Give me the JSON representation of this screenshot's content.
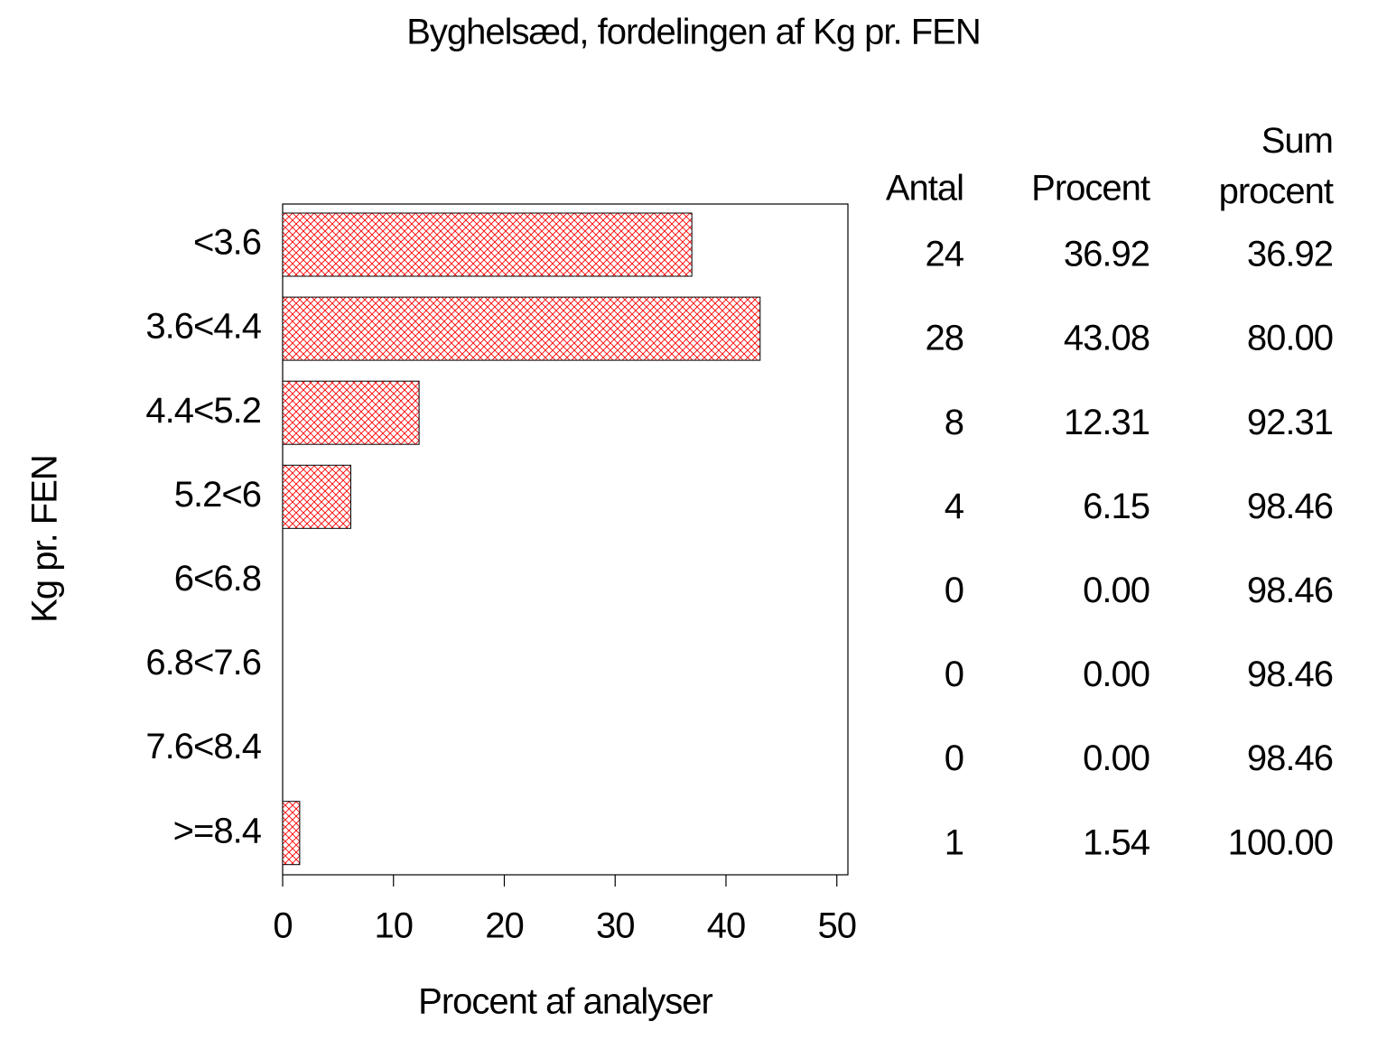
{
  "chart_data": {
    "type": "bar",
    "orientation": "horizontal",
    "title": "Byghelsæd, fordelingen af Kg pr. FEN",
    "x_label": "Procent af analyser",
    "y_label": "Kg pr. FEN",
    "categories": [
      "<3.6",
      "3.6<4.4",
      "4.4<5.2",
      "5.2<6",
      "6<6.8",
      "6.8<7.6",
      "7.6<8.4",
      ">=8.4"
    ],
    "series": [
      {
        "name": "Procent",
        "color": "#ff0000",
        "values": [
          36.92,
          43.08,
          12.31,
          6.15,
          0,
          0,
          0,
          1.54
        ],
        "value_labels": [
          "36.92",
          "43.08",
          "12.31",
          "6.15",
          "0.00",
          "0.00",
          "0.00",
          "1.54"
        ]
      }
    ],
    "xlim": [
      0,
      51
    ],
    "xticks": [
      0,
      10,
      20,
      30,
      40,
      50
    ],
    "table": {
      "headers": [
        "Antal",
        "Procent",
        "Sum procent"
      ],
      "antal": [
        24,
        28,
        8,
        4,
        0,
        0,
        0,
        1
      ],
      "cumulative": [
        36.92,
        80,
        92.31,
        98.46,
        98.46,
        98.46,
        98.46,
        100
      ],
      "cumulative_labels": [
        "36.92",
        "80.00",
        "92.31",
        "98.46",
        "98.46",
        "98.46",
        "98.46",
        "100.00"
      ]
    }
  }
}
